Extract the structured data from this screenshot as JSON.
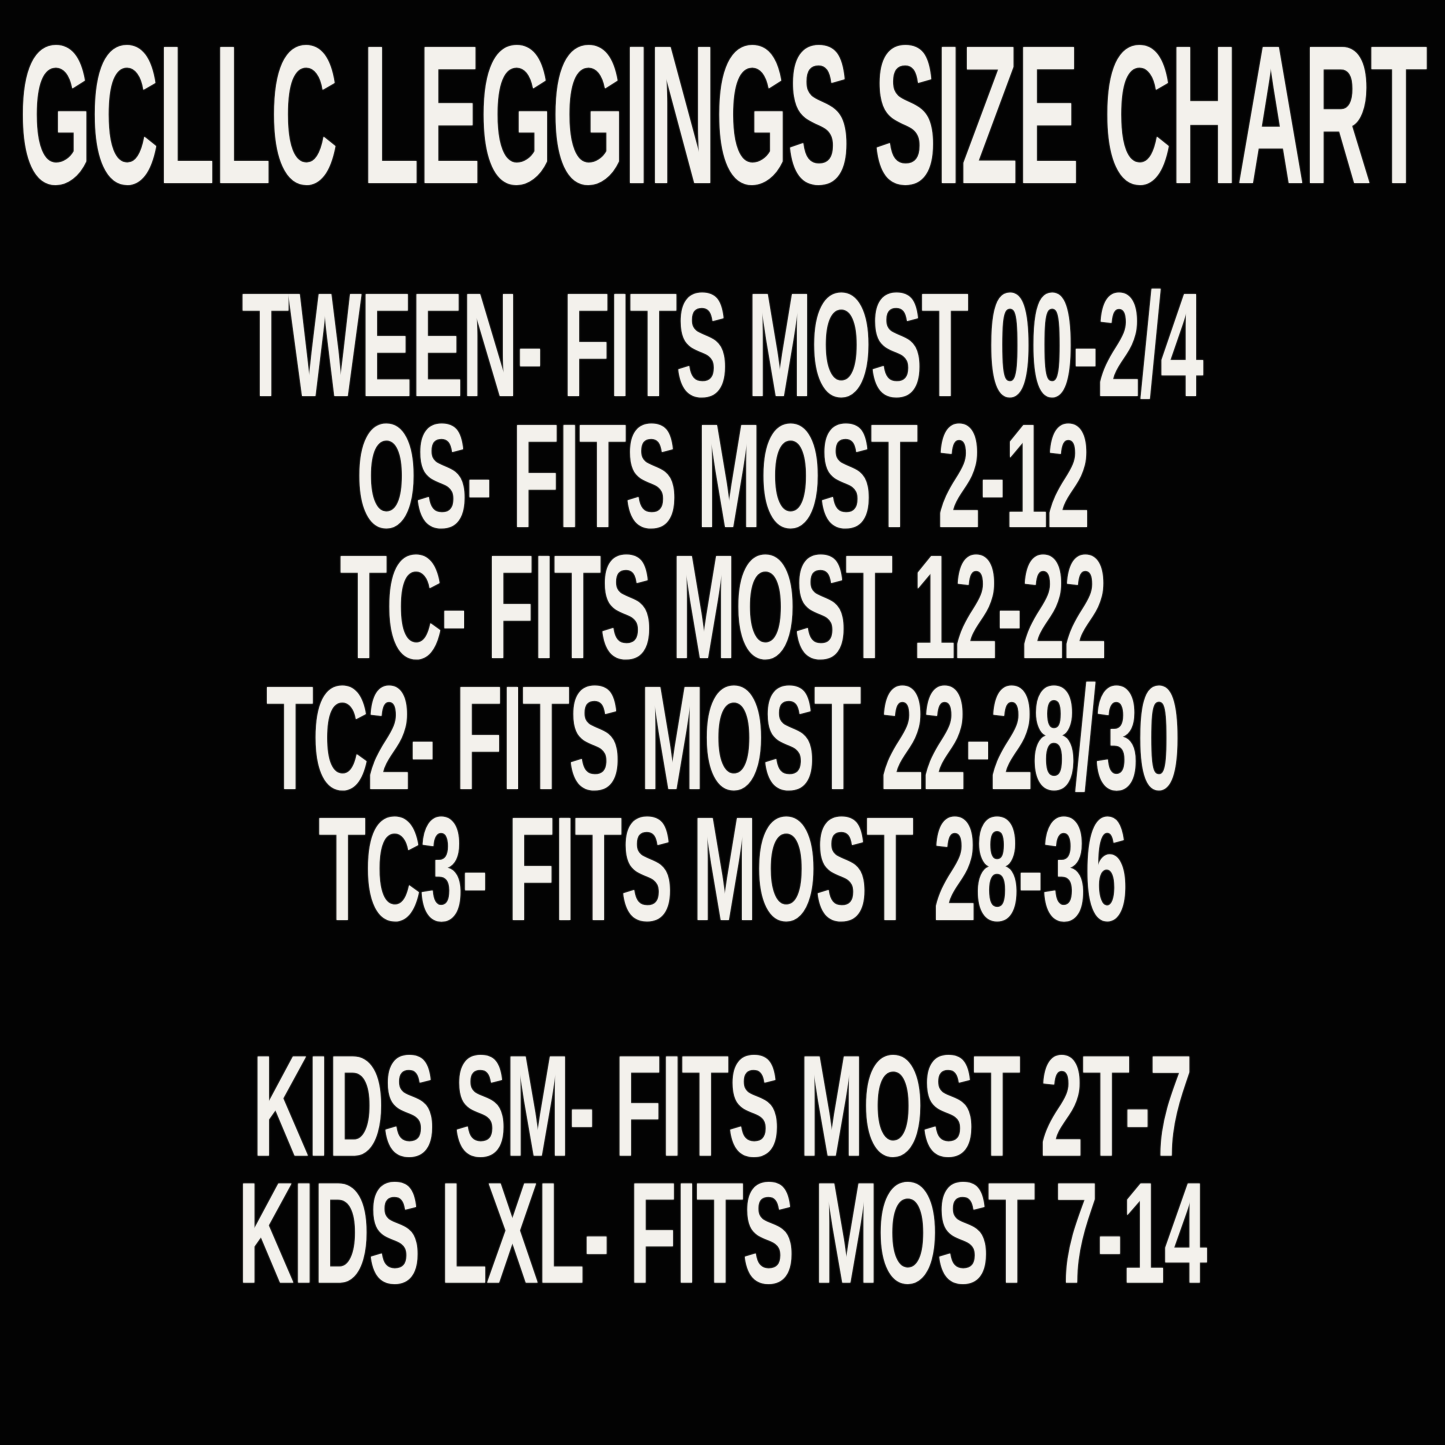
{
  "page": {
    "background_color": "#000000",
    "text_color": "#f3f1ec"
  },
  "title": "GCLLC LEGGINGS SIZE CHART",
  "adult_sizes": [
    {
      "size": "TWEEN",
      "range": "00-2/4",
      "text": "TWEEN- FITS MOST 00-2/4"
    },
    {
      "size": "OS",
      "range": "2-12",
      "text": "OS- FITS MOST 2-12"
    },
    {
      "size": "TC",
      "range": "12-22",
      "text": "TC- FITS MOST 12-22"
    },
    {
      "size": "TC2",
      "range": "22-28/30",
      "text": "TC2- FITS MOST 22-28/30"
    },
    {
      "size": "TC3",
      "range": "28-36",
      "text": "TC3- FITS MOST 28-36"
    }
  ],
  "kids_sizes": [
    {
      "size": "KIDS SM",
      "range": "2T-7",
      "text": "KIDS SM- FITS MOST 2T-7"
    },
    {
      "size": "KIDS LXL",
      "range": "7-14",
      "text": "KIDS LXL- FITS MOST 7-14"
    }
  ]
}
